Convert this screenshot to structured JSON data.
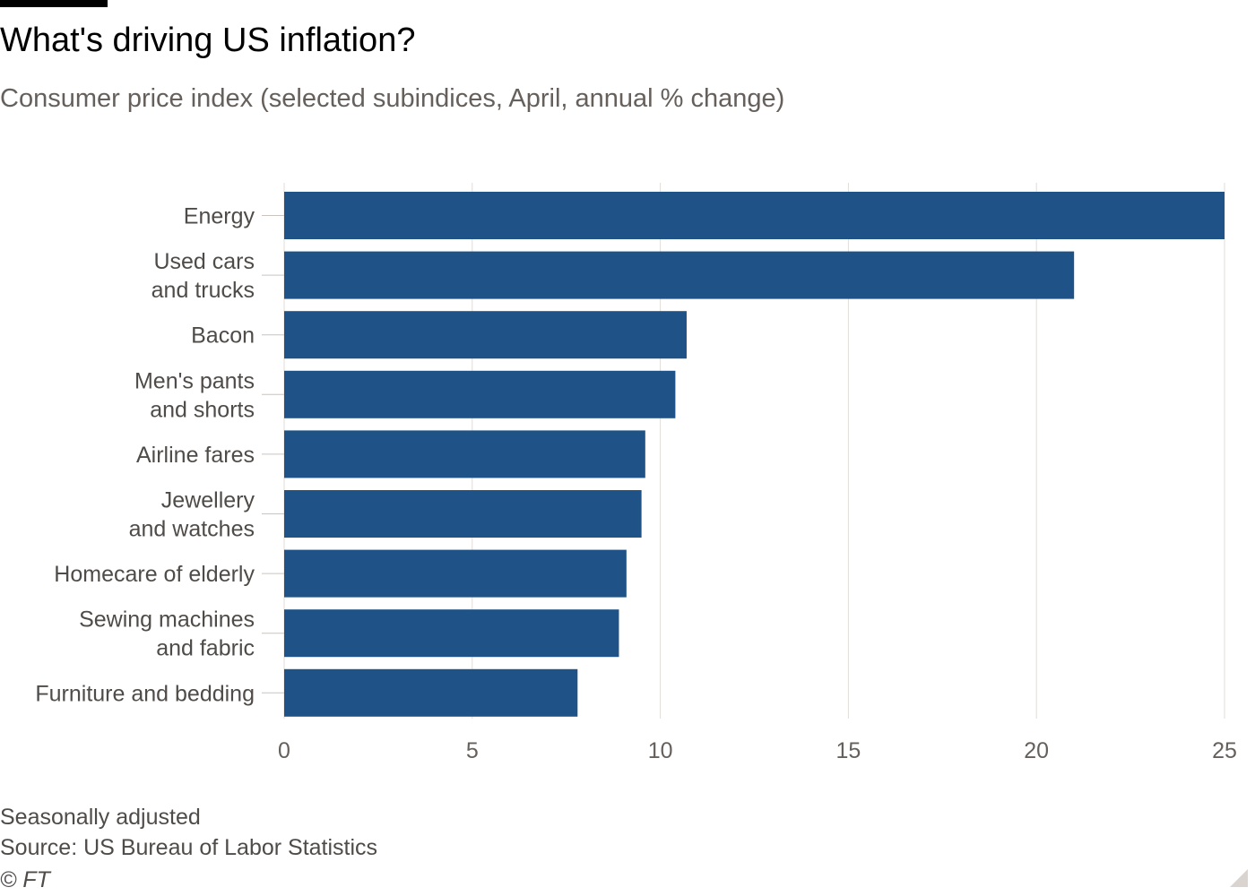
{
  "header": {
    "title": "What's driving US inflation?",
    "subtitle": "Consumer price index (selected subindices, April, annual % change)"
  },
  "footer": {
    "note": "Seasonally adjusted",
    "source": "Source: US Bureau of Labor Statistics",
    "credit": "© FT"
  },
  "colors": {
    "bar": "#1f5387",
    "grid": "#e1dcd8"
  },
  "chart_data": {
    "type": "bar",
    "orientation": "horizontal",
    "title": "What's driving US inflation?",
    "subtitle": "Consumer price index (selected subindices, April, annual % change)",
    "categories": [
      [
        "Energy"
      ],
      [
        "Used cars",
        "and trucks"
      ],
      [
        "Bacon"
      ],
      [
        "Men's pants",
        "and shorts"
      ],
      [
        "Airline fares"
      ],
      [
        "Jewellery",
        "and watches"
      ],
      [
        "Homecare of elderly"
      ],
      [
        "Sewing machines",
        "and fabric"
      ],
      [
        "Furniture and bedding"
      ]
    ],
    "values": [
      25.0,
      21.0,
      10.7,
      10.4,
      9.6,
      9.5,
      9.1,
      8.9,
      7.8
    ],
    "xlim": [
      0,
      25
    ],
    "xticks": [
      0,
      5,
      10,
      15,
      20,
      25
    ],
    "grid": true,
    "legend": "none"
  }
}
